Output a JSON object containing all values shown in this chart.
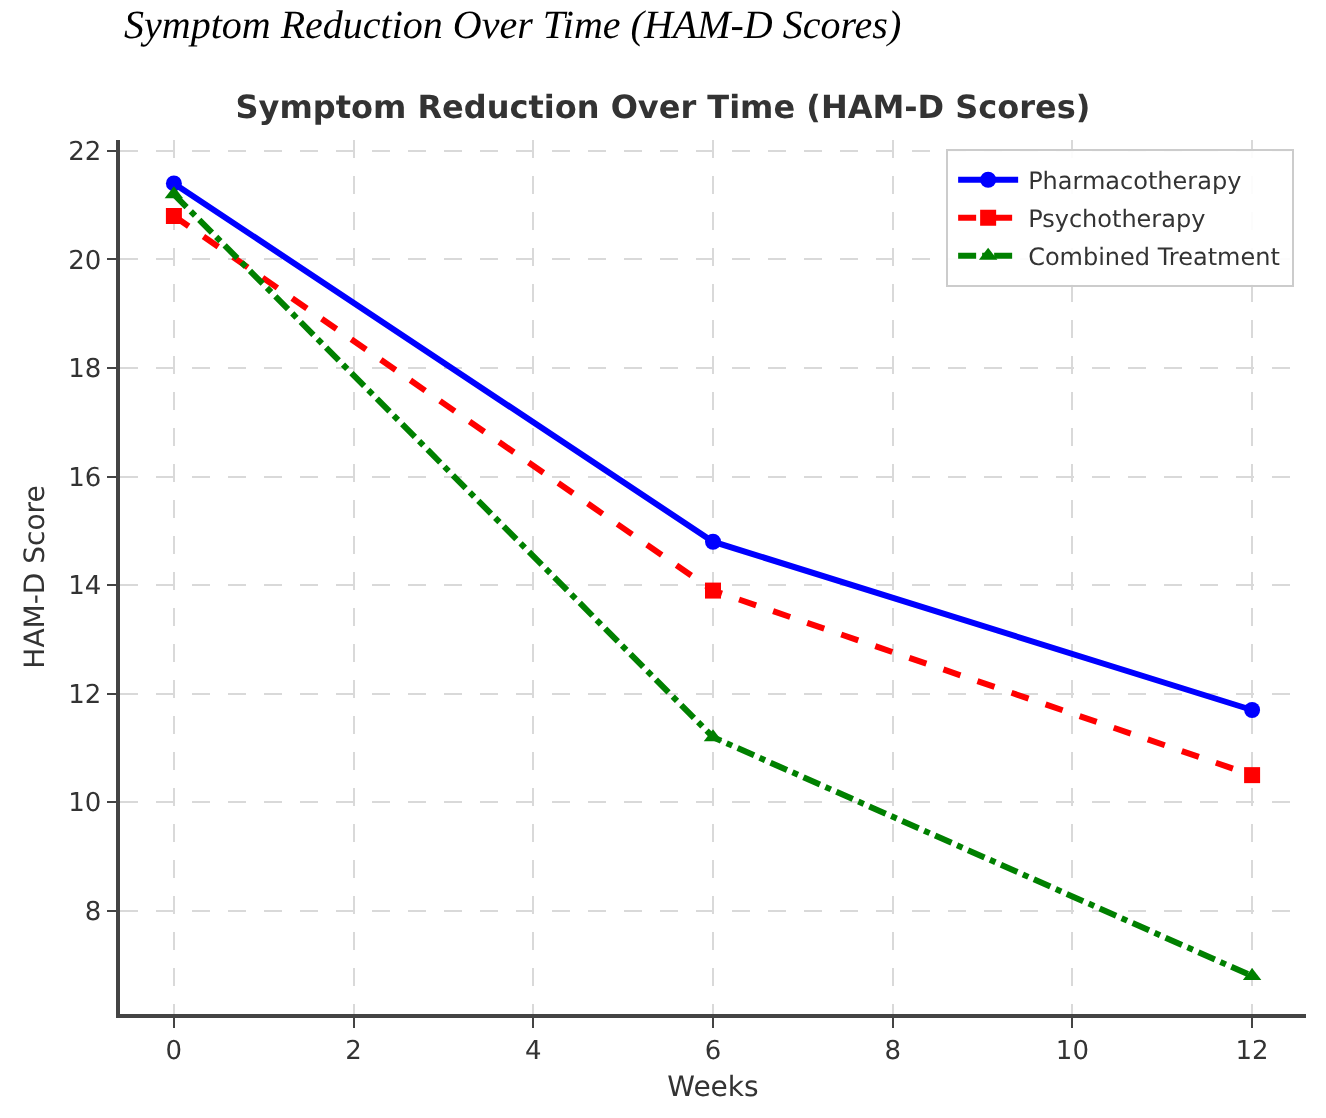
{
  "chart_data": {
    "type": "line",
    "title": "Symptom Reduction Over Time (HAM-D Scores)",
    "annotations": [
      "Symptom Reduction Over Time (HAM-D Scores)"
    ],
    "xlabel": "Weeks",
    "ylabel": "HAM-D Score",
    "x": [
      0,
      6,
      12
    ],
    "series": [
      {
        "name": "Pharmacotherapy",
        "color": "#0000ff",
        "values": [
          21.4,
          14.8,
          11.7
        ],
        "marker": "circle",
        "line_style": "solid"
      },
      {
        "name": "Psychotherapy",
        "color": "#ff0000",
        "values": [
          20.8,
          13.9,
          10.5
        ],
        "marker": "square",
        "line_style": "dashed"
      },
      {
        "name": "Combined Treatment",
        "color": "#008000",
        "values": [
          21.2,
          11.2,
          6.8
        ],
        "marker": "triangle",
        "line_style": "dashdot"
      }
    ],
    "xlim": [
      -0.6,
      12.6
    ],
    "xticks": [
      0,
      2,
      4,
      6,
      8,
      10,
      12
    ],
    "ylim": [
      6.1,
      22.2
    ],
    "yticks": [
      8,
      10,
      12,
      14,
      16,
      18,
      20,
      22
    ],
    "grid": true,
    "legend": "top right"
  }
}
